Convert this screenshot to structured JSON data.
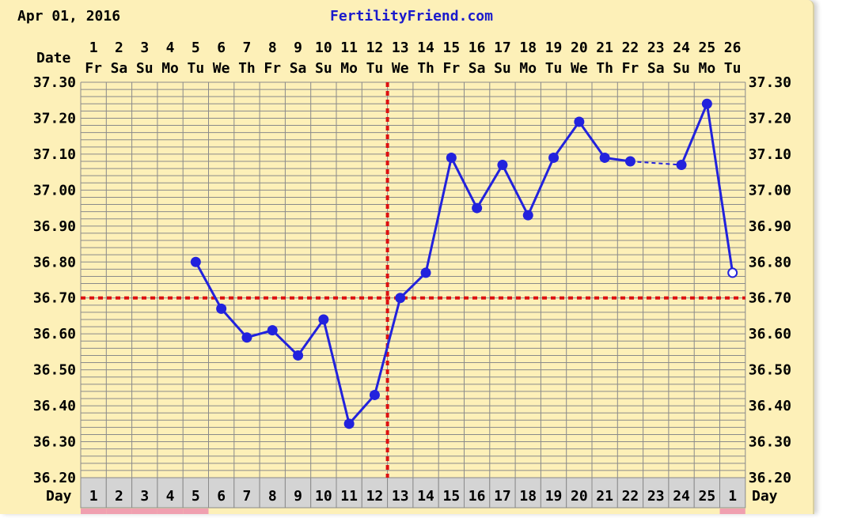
{
  "header": {
    "date": "Apr 01, 2016",
    "brand": "FertilityFriend.com",
    "date_row_label": "Date",
    "day_row_label": "Day"
  },
  "colors": {
    "background": "#fdf0b8",
    "grid": "#8a8a8a",
    "line": "#2222dd",
    "coverline": "#dd1111",
    "cycle_day_cell": "#d4d4d4",
    "period_bar": "#f0a0b0"
  },
  "chart_data": {
    "type": "line",
    "title": "",
    "xlabel": "Date",
    "ylabel": "",
    "ylim": [
      36.2,
      37.3
    ],
    "ytick_step": 0.1,
    "grid": true,
    "x_dates": [
      "1",
      "2",
      "3",
      "4",
      "5",
      "6",
      "7",
      "8",
      "9",
      "10",
      "11",
      "12",
      "13",
      "14",
      "15",
      "16",
      "17",
      "18",
      "19",
      "20",
      "21",
      "22",
      "23",
      "24",
      "25",
      "26"
    ],
    "x_weekdays": [
      "Fr",
      "Sa",
      "Su",
      "Mo",
      "Tu",
      "We",
      "Th",
      "Fr",
      "Sa",
      "Su",
      "Mo",
      "Tu",
      "We",
      "Th",
      "Fr",
      "Sa",
      "Su",
      "Mo",
      "Tu",
      "We",
      "Th",
      "Fr",
      "Sa",
      "Su",
      "Mo",
      "Tu"
    ],
    "cycle_days": [
      "1",
      "2",
      "3",
      "4",
      "5",
      "6",
      "7",
      "8",
      "9",
      "10",
      "11",
      "12",
      "13",
      "14",
      "15",
      "16",
      "17",
      "18",
      "19",
      "20",
      "21",
      "22",
      "23",
      "24",
      "25",
      "1"
    ],
    "ytick_labels": [
      "37.30",
      "37.20",
      "37.10",
      "37.00",
      "36.90",
      "36.80",
      "36.70",
      "36.60",
      "36.50",
      "36.40",
      "36.30",
      "36.20"
    ],
    "series": [
      {
        "values": [
          null,
          null,
          null,
          null,
          36.8,
          36.67,
          36.59,
          36.61,
          36.54,
          36.64,
          36.35,
          36.43,
          36.7,
          36.77,
          37.09,
          36.95,
          37.07,
          36.93,
          37.09,
          37.19,
          37.09,
          37.08,
          null,
          37.07,
          37.24,
          36.77
        ]
      }
    ],
    "hollow_points": [
      26
    ],
    "dashed_segments": [
      [
        22,
        24
      ]
    ],
    "coverline_temp": 36.7,
    "ovulation_day": 12
  }
}
